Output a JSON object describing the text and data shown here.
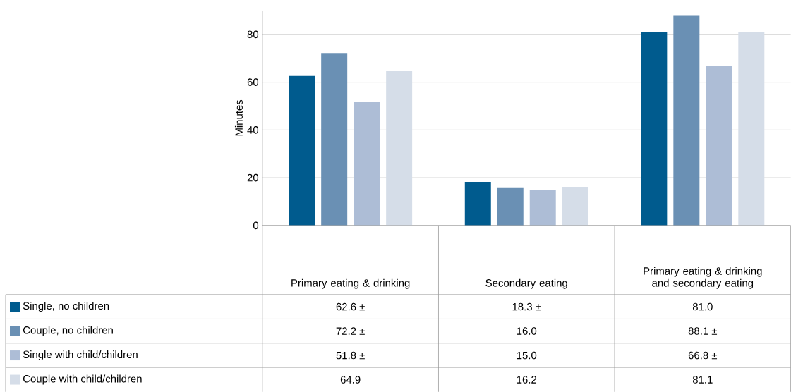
{
  "chart_data": {
    "type": "bar",
    "ylabel": "Minutes",
    "categories": [
      "Primary eating & drinking",
      "Secondary eating",
      "Primary eating & drinking and secondary eating"
    ],
    "series": [
      {
        "name": "Single, no children",
        "color": "#005b8e",
        "values": [
          62.6,
          18.3,
          81.0
        ],
        "value_labels": [
          "62.6 ±",
          "18.3 ±",
          "81.0"
        ]
      },
      {
        "name": "Couple, no children",
        "color": "#6a90b4",
        "values": [
          72.2,
          16.0,
          88.1
        ],
        "value_labels": [
          "72.2 ±",
          "16.0",
          "88.1 ±"
        ]
      },
      {
        "name": "Single with child/children",
        "color": "#adbdd6",
        "values": [
          51.8,
          15.0,
          66.8
        ],
        "value_labels": [
          "51.8 ±",
          "15.0",
          "66.8 ±"
        ]
      },
      {
        "name": "Couple with child/children",
        "color": "#d5dde8",
        "values": [
          64.9,
          16.2,
          81.1
        ],
        "value_labels": [
          "64.9",
          "16.2",
          "81.1"
        ]
      }
    ],
    "ylim": [
      0,
      90
    ],
    "yticks": [
      0,
      20,
      40,
      60,
      80
    ],
    "grid": "y",
    "legend": "bottom"
  }
}
